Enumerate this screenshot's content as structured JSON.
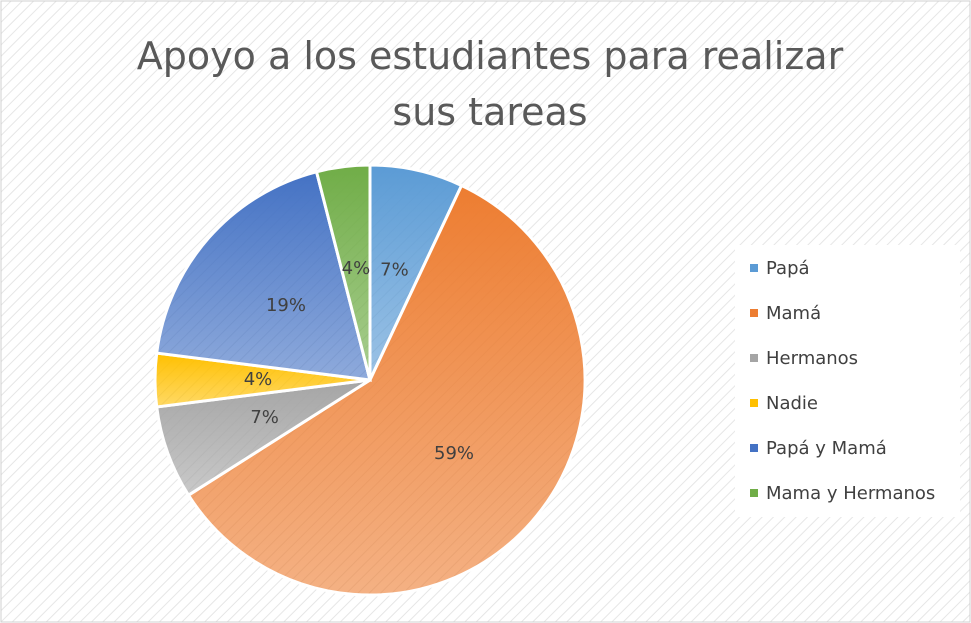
{
  "chart_data": {
    "type": "pie",
    "title": "Apoyo a los estudiantes para realizar sus tareas",
    "categories": [
      "Papá",
      "Mamá",
      "Hermanos",
      "Nadie",
      "Papá y Mamá",
      "Mama y Hermanos"
    ],
    "values": [
      7,
      59,
      7,
      4,
      19,
      4
    ],
    "value_labels": [
      "7%",
      "59%",
      "7%",
      "4%",
      "19%",
      "4%"
    ],
    "colors": [
      "#5b9bd5",
      "#ed7d31",
      "#a5a5a5",
      "#ffc000",
      "#4472c4",
      "#70ad47"
    ],
    "legend": "right"
  }
}
